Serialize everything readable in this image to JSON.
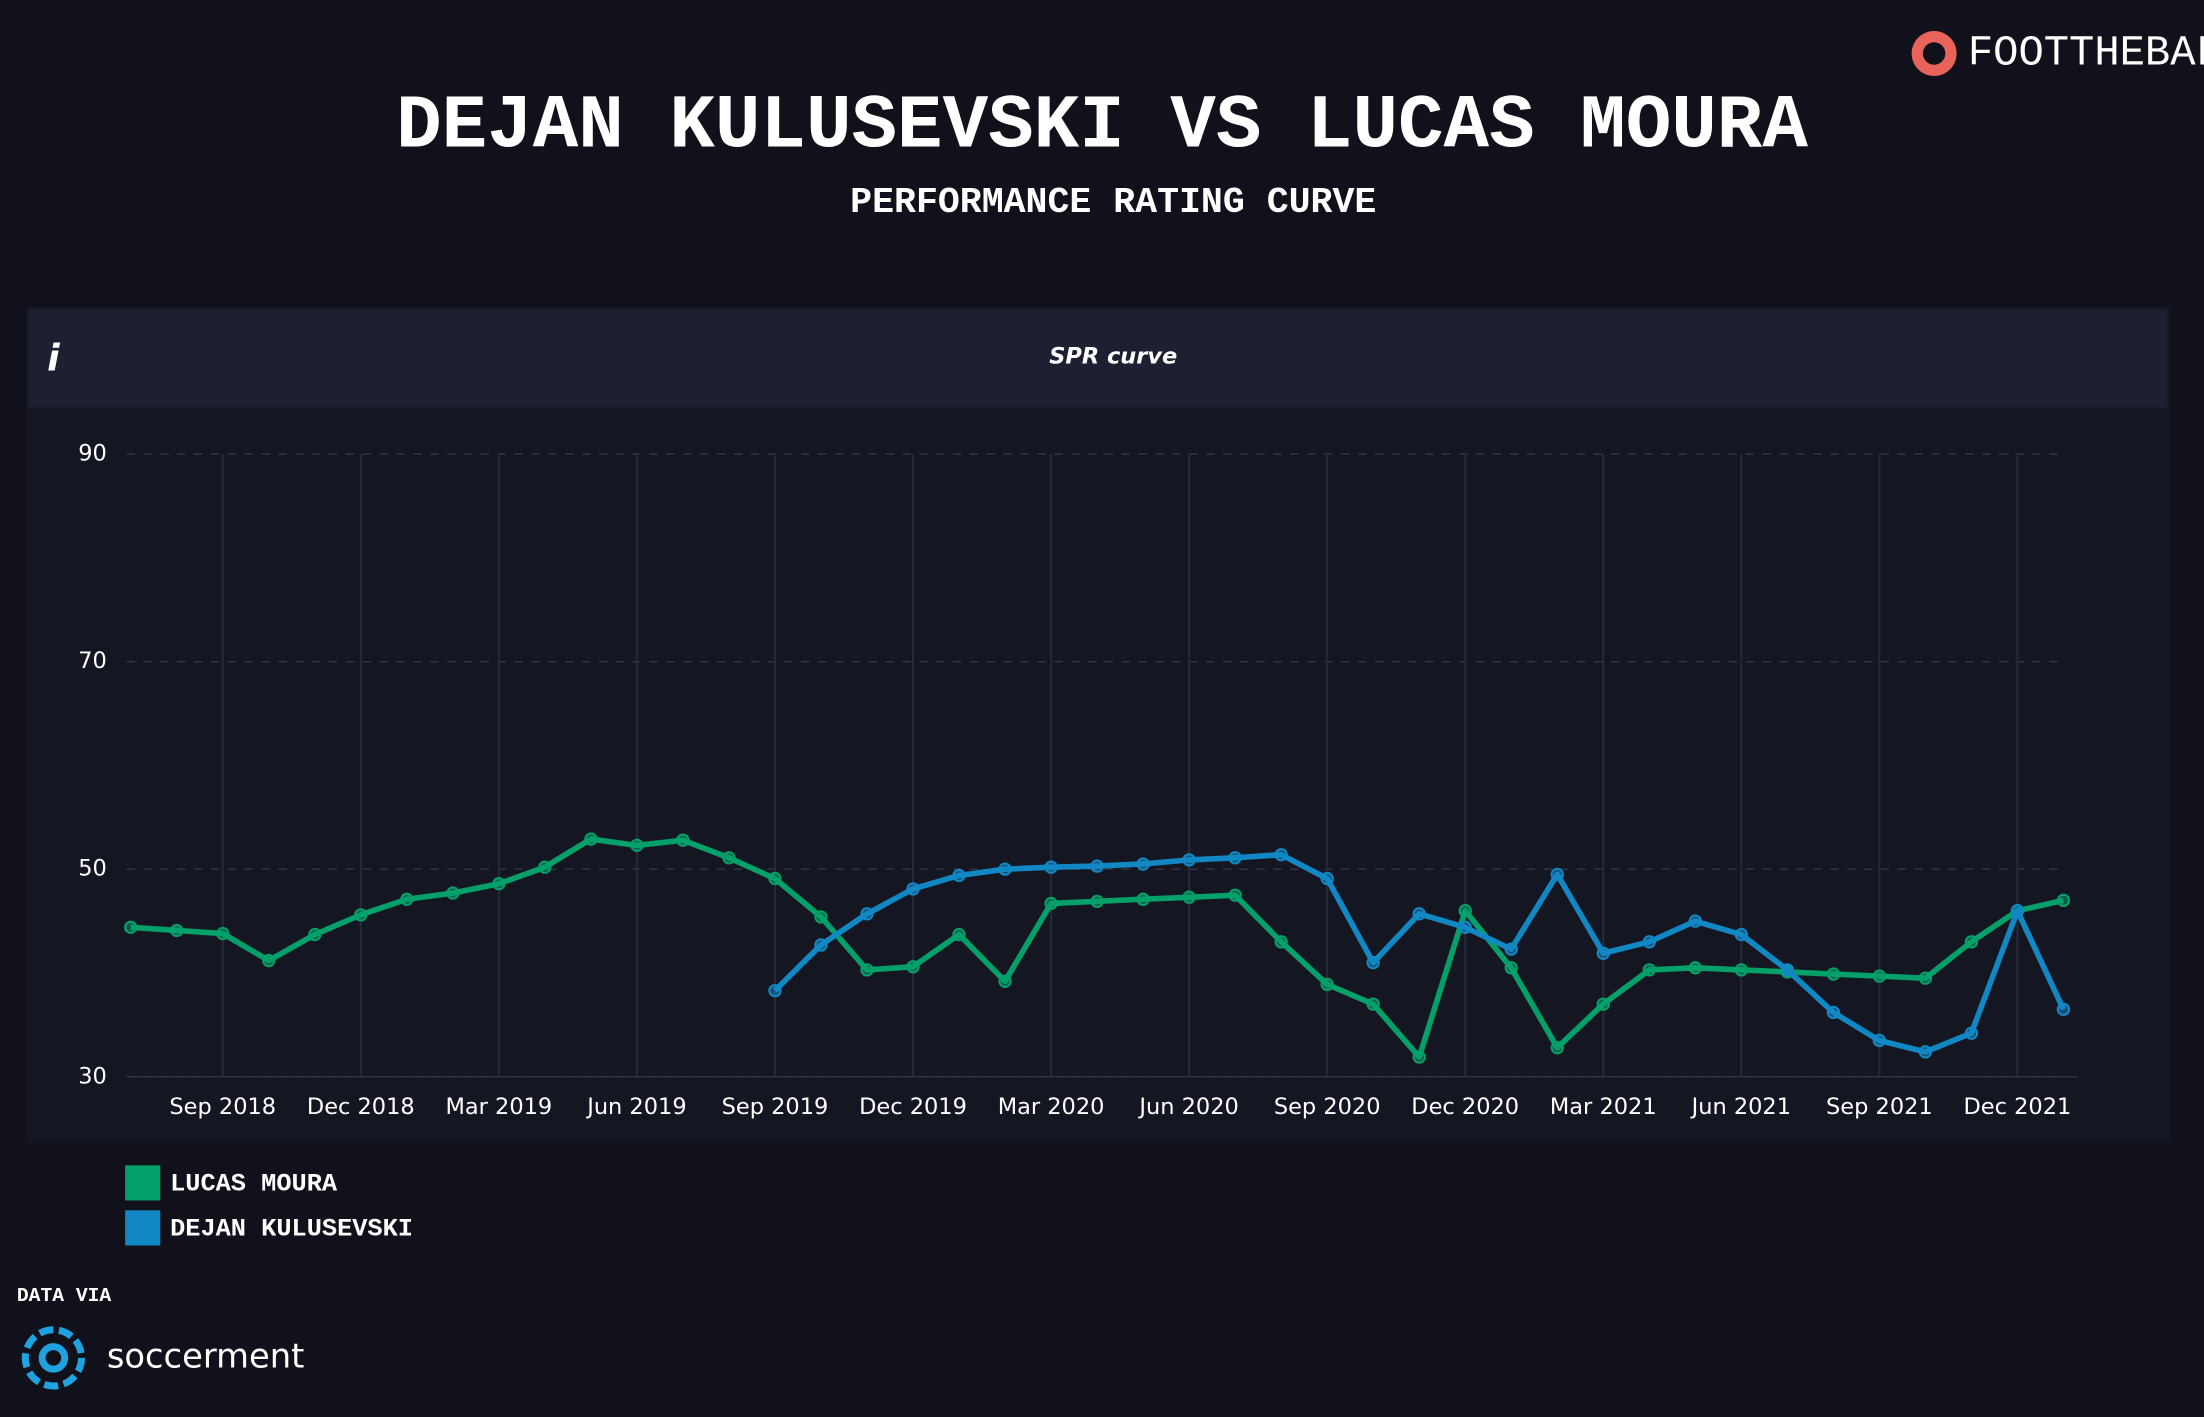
{
  "chart_data": {
    "type": "line",
    "title": "DEJAN KULUSEVSKI VS LUCAS MOURA",
    "subtitle": "PERFORMANCE RATING CURVE",
    "panel_title": "SPR curve",
    "x": [
      "2018-07",
      "2018-08",
      "2018-09",
      "2018-10",
      "2018-11",
      "2018-12",
      "2019-01",
      "2019-02",
      "2019-03",
      "2019-04",
      "2019-05",
      "2019-06",
      "2019-07",
      "2019-08",
      "2019-09",
      "2019-10",
      "2019-11",
      "2019-12",
      "2020-01",
      "2020-02",
      "2020-03",
      "2020-04",
      "2020-05",
      "2020-06",
      "2020-07",
      "2020-08",
      "2020-09",
      "2020-10",
      "2020-11",
      "2020-12",
      "2021-01",
      "2021-02",
      "2021-03",
      "2021-04",
      "2021-05",
      "2021-06",
      "2021-07",
      "2021-08",
      "2021-09",
      "2021-10",
      "2021-11",
      "2021-12",
      "2022-01"
    ],
    "series": [
      {
        "name": "LUCAS MOURA",
        "color": "#03a06a",
        "values": [
          44.4,
          44.1,
          43.8,
          41.2,
          43.7,
          45.6,
          47.1,
          47.7,
          48.6,
          50.2,
          52.9,
          52.3,
          52.8,
          51.1,
          49.1,
          45.4,
          40.3,
          40.6,
          43.7,
          39.2,
          46.7,
          46.9,
          47.1,
          47.3,
          47.5,
          43.0,
          38.9,
          37.0,
          31.9,
          46.0,
          40.5,
          32.8,
          37.0,
          40.3,
          40.5,
          40.3,
          40.1,
          39.9,
          39.7,
          39.5,
          43.0,
          46.0,
          47.0
        ]
      },
      {
        "name": "DEJAN KULUSEVSKI",
        "color": "#1188c4",
        "values": [
          null,
          null,
          null,
          null,
          null,
          null,
          null,
          null,
          null,
          null,
          null,
          null,
          null,
          null,
          38.3,
          42.7,
          45.7,
          48.1,
          49.4,
          50.0,
          50.2,
          50.3,
          50.5,
          50.9,
          51.1,
          51.4,
          49.1,
          41.0,
          45.7,
          44.4,
          42.3,
          49.5,
          41.9,
          43.0,
          45.0,
          43.7,
          40.3,
          36.2,
          33.5,
          32.4,
          34.2,
          46.0,
          36.5
        ]
      }
    ],
    "xlim": [
      "2018-07",
      "2022-01"
    ],
    "xticks": [
      {
        "value": "2018-09",
        "label": "Sep 2018"
      },
      {
        "value": "2018-12",
        "label": "Dec 2018"
      },
      {
        "value": "2019-03",
        "label": "Mar 2019"
      },
      {
        "value": "2019-06",
        "label": "Jun 2019"
      },
      {
        "value": "2019-09",
        "label": "Sep 2019"
      },
      {
        "value": "2019-12",
        "label": "Dec 2019"
      },
      {
        "value": "2020-03",
        "label": "Mar 2020"
      },
      {
        "value": "2020-06",
        "label": "Jun 2020"
      },
      {
        "value": "2020-09",
        "label": "Sep 2020"
      },
      {
        "value": "2020-12",
        "label": "Dec 2020"
      },
      {
        "value": "2021-03",
        "label": "Mar 2021"
      },
      {
        "value": "2021-06",
        "label": "Jun 2021"
      },
      {
        "value": "2021-09",
        "label": "Sep 2021"
      },
      {
        "value": "2021-12",
        "label": "Dec 2021"
      }
    ],
    "ylim": [
      30,
      90
    ],
    "yticks": [
      30,
      50,
      70,
      90
    ],
    "grid": true,
    "legend": "bottom-left"
  },
  "branding": {
    "logo": "FOOTTHEBALL",
    "info_icon": "i",
    "data_via": "DATA VIA",
    "source": "soccerment"
  }
}
